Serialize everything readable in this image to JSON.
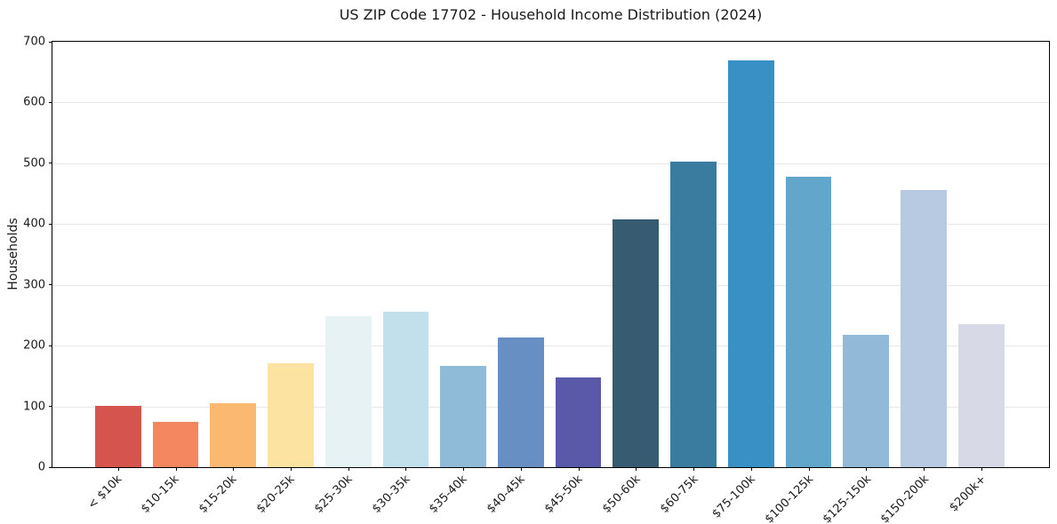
{
  "chart_data": {
    "type": "bar",
    "title": "US ZIP Code 17702 - Household Income Distribution (2024)",
    "xlabel": "",
    "ylabel": "Households",
    "ylim": [
      0,
      700
    ],
    "yticks": [
      0,
      100,
      200,
      300,
      400,
      500,
      600,
      700
    ],
    "grid": "horizontal",
    "legend": "none",
    "background_color": "#ffffff",
    "gridline_color": "#e7e7e7",
    "spine_color": "#000000",
    "categories": [
      "< $10k",
      "$10-15k",
      "$15-20k",
      "$20-25k",
      "$25-30k",
      "$30-35k",
      "$35-40k",
      "$40-45k",
      "$45-50k",
      "$50-60k",
      "$60-75k",
      "$75-100k",
      "$100-125k",
      "$125-150k",
      "$150-200k",
      "$200k+"
    ],
    "values": [
      101,
      75,
      105,
      171,
      248,
      256,
      166,
      213,
      147,
      408,
      503,
      670,
      478,
      218,
      456,
      235
    ],
    "bar_colors": [
      "#d6544e",
      "#f4875f",
      "#fab871",
      "#fde3a2",
      "#e7f2f4",
      "#c1e0ec",
      "#8fbbd9",
      "#688fc3",
      "#5a58a8",
      "#375b70",
      "#3a7ba0",
      "#3990c4",
      "#62a7cb",
      "#92b9d8",
      "#b8c9e2",
      "#d8d9e6"
    ]
  }
}
